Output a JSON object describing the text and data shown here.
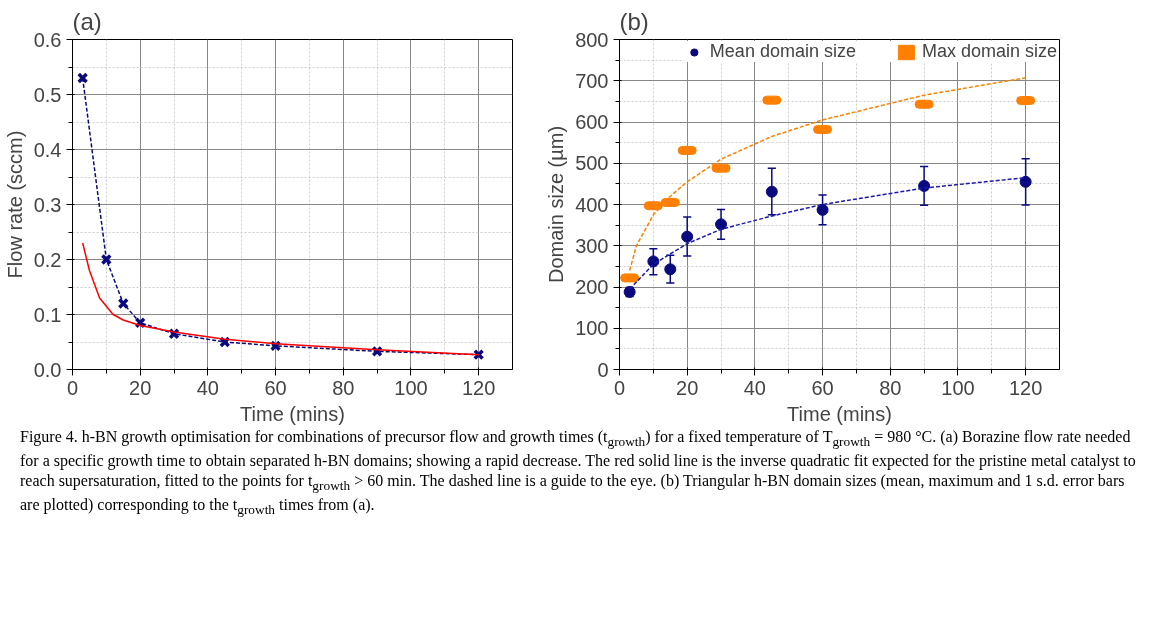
{
  "chart_data": [
    {
      "type": "line",
      "title": "(a)",
      "xlabel": "Time (mins)",
      "ylabel": "Flow rate (sccm)",
      "xlim": [
        0,
        130
      ],
      "xticks": [
        0,
        20,
        40,
        60,
        80,
        100,
        120
      ],
      "ylim": [
        0,
        0.6
      ],
      "yticks": [
        {
          "value": 0,
          "label": "0.0"
        },
        0.1,
        0.2,
        0.3,
        0.4,
        0.5,
        0.6
      ],
      "grid": true,
      "legend": false,
      "series": [
        {
          "color": "#0a0a80",
          "line_style": "dashed",
          "marker": "cross",
          "x": [
            3,
            10,
            15,
            20,
            30,
            45,
            60,
            90,
            120
          ],
          "values": [
            0.53,
            0.2,
            0.12,
            0.085,
            0.065,
            0.05,
            0.043,
            0.033,
            0.027
          ]
        },
        {
          "color": "#ff0000",
          "line_style": "solid",
          "marker": "none",
          "x": [
            3,
            5,
            8,
            10,
            12,
            15,
            20,
            30,
            45,
            60,
            90,
            120
          ],
          "values": [
            0.23,
            0.18,
            0.13,
            0.115,
            0.1,
            0.09,
            0.08,
            0.068,
            0.055,
            0.047,
            0.036,
            0.027
          ]
        }
      ]
    },
    {
      "type": "scatter",
      "title": "(b)",
      "xlabel": "Time (mins)",
      "ylabel": "Domain size (µm)",
      "xlim": [
        0,
        130
      ],
      "xticks": [
        0,
        20,
        40,
        60,
        80,
        100,
        120
      ],
      "ylim": [
        0,
        800
      ],
      "yticks": [
        0,
        100,
        200,
        300,
        400,
        500,
        600,
        700,
        800
      ],
      "grid": true,
      "legend": "top right",
      "series": [
        {
          "name": "Mean domain size",
          "color": "#0a0a80",
          "marker": "circle",
          "x": [
            3,
            10,
            15,
            20,
            30,
            45,
            60,
            90,
            120
          ],
          "values": [
            188,
            262,
            243,
            322,
            352,
            431,
            387,
            445,
            455
          ],
          "errors": [
            [
              177,
              199
            ],
            [
              230,
              293
            ],
            [
              210,
              277
            ],
            [
              275,
              370
            ],
            [
              316,
              388
            ],
            [
              375,
              488
            ],
            [
              351,
              423
            ],
            [
              398,
              492
            ],
            [
              399,
              511
            ]
          ]
        },
        {
          "name": "Max domain size",
          "color": "#ff8000",
          "marker": "square",
          "x": [
            3,
            10,
            15,
            20,
            30,
            45,
            60,
            90,
            120
          ],
          "values": [
            222,
            397,
            405,
            531,
            488,
            653,
            582,
            643,
            652
          ]
        },
        {
          "type": "line",
          "color": "#1a1ab0",
          "line_style": "dashed",
          "marker": "none",
          "x": [
            3,
            10,
            15,
            20,
            30,
            45,
            60,
            90,
            120
          ],
          "values": [
            195,
            255,
            280,
            305,
            340,
            372,
            400,
            440,
            465
          ]
        },
        {
          "type": "line",
          "color": "#ff8000",
          "line_style": "dashed",
          "marker": "none",
          "x": [
            3,
            5,
            10,
            15,
            20,
            30,
            45,
            60,
            90,
            120
          ],
          "values": [
            240,
            300,
            375,
            420,
            455,
            510,
            565,
            605,
            665,
            707
          ]
        }
      ],
      "annotations": [
        "Figure 4.  h-BN growth optimisation for combinations of precursor flow and growth times (t$_{growth}$) for a fixed temperature of T$_{growth}$ = 980 °C. (a) Borazine flow rate needed for a specific growth time to obtain separated h-BN domains; showing a rapid decrease. The red solid line is the inverse quadratic fit expected for the pristine metal catalyst to reach supersaturation, fitted to the points for t$_{growth}$ > 60 min. The dashed line is a guide to the eye. (b) Triangular h-BN domain sizes (mean, maximum and 1 s.d. error bars are plotted) corresponding to the t$_{growth}$ times from (a)."
      ]
    }
  ]
}
